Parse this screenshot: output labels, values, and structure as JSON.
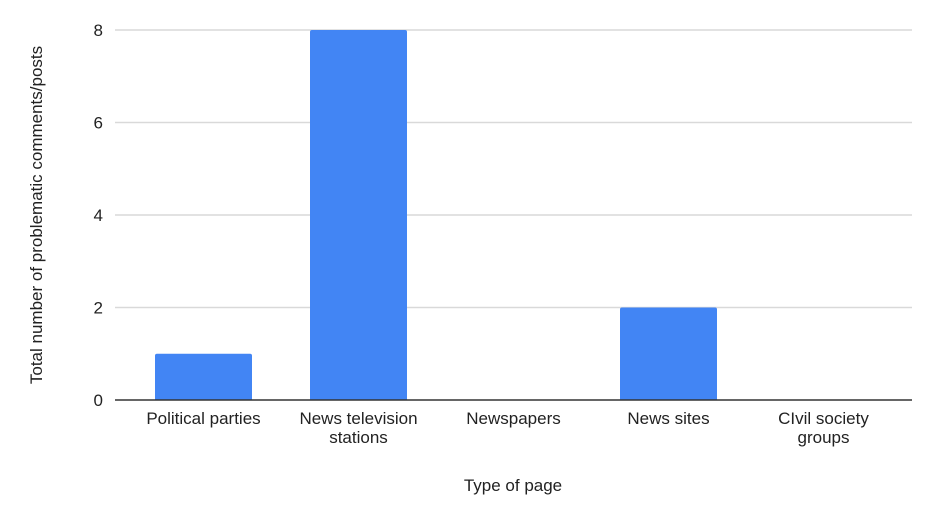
{
  "chart_data": {
    "type": "bar",
    "title": "",
    "xlabel": "Type of page",
    "ylabel": "Total number of problematic comments/posts",
    "categories": [
      [
        "Political parties"
      ],
      [
        "News television",
        "stations"
      ],
      [
        "Newspapers"
      ],
      [
        "News sites"
      ],
      [
        "CIvil society",
        "groups"
      ]
    ],
    "values": [
      1,
      8,
      0,
      2,
      0
    ],
    "ylim": [
      0,
      8
    ],
    "yticks": [
      0,
      2,
      4,
      6,
      8
    ],
    "grid": true,
    "legend": "none",
    "colors": {
      "bar": "#4285f4",
      "grid": "#d9d9d9",
      "axis": "#333333"
    }
  }
}
